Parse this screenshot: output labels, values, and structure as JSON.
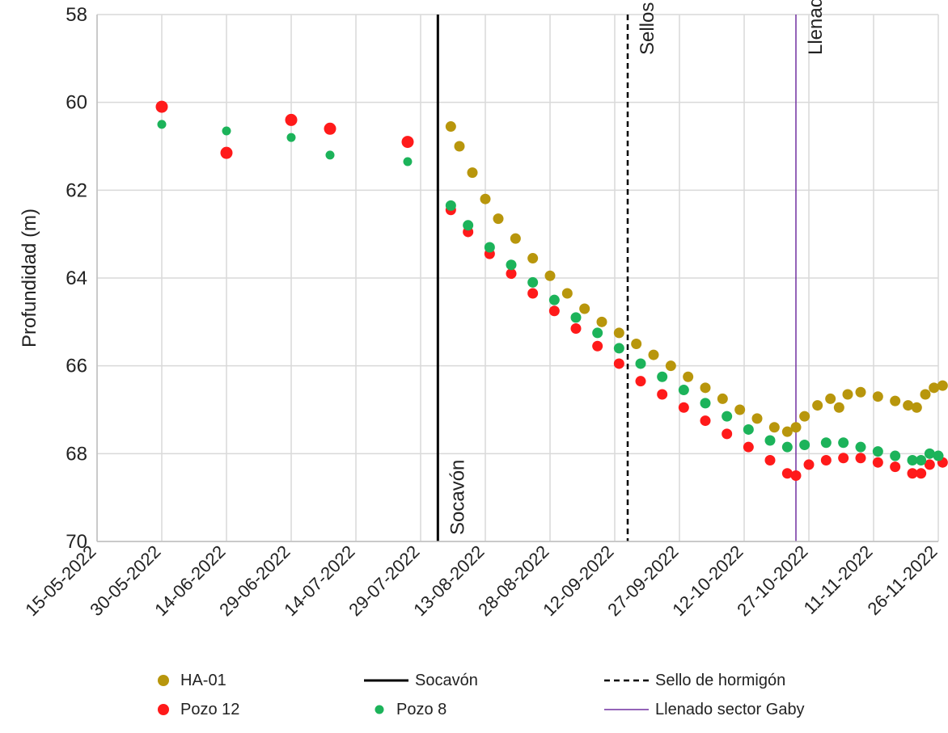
{
  "chart_data": {
    "type": "scatter",
    "ylabel": "Profundidad (m)",
    "xlabel": "",
    "y_reversed": true,
    "ylim": [
      58,
      70
    ],
    "yticks": [
      "58",
      "60",
      "62",
      "64",
      "66",
      "68",
      "70"
    ],
    "xlim": [
      "2022-05-15",
      "2022-11-26"
    ],
    "xticks": [
      "15-05-2022",
      "30-05-2022",
      "14-06-2022",
      "29-06-2022",
      "14-07-2022",
      "29-07-2022",
      "13-08-2022",
      "28-08-2022",
      "12-09-2022",
      "27-09-2022",
      "12-10-2022",
      "27-10-2022",
      "11-11-2022",
      "26-11-2022"
    ],
    "grid": true,
    "legend_position": "bottom",
    "series": [
      {
        "name": "HA-01",
        "color": "#b8960c",
        "marker": "circle",
        "points": [
          [
            "2022-08-05",
            60.55
          ],
          [
            "2022-08-07",
            61.0
          ],
          [
            "2022-08-10",
            61.6
          ],
          [
            "2022-08-13",
            62.2
          ],
          [
            "2022-08-16",
            62.65
          ],
          [
            "2022-08-20",
            63.1
          ],
          [
            "2022-08-24",
            63.55
          ],
          [
            "2022-08-28",
            63.95
          ],
          [
            "2022-09-01",
            64.35
          ],
          [
            "2022-09-05",
            64.7
          ],
          [
            "2022-09-09",
            65.0
          ],
          [
            "2022-09-13",
            65.25
          ],
          [
            "2022-09-17",
            65.5
          ],
          [
            "2022-09-21",
            65.75
          ],
          [
            "2022-09-25",
            66.0
          ],
          [
            "2022-09-29",
            66.25
          ],
          [
            "2022-10-03",
            66.5
          ],
          [
            "2022-10-07",
            66.75
          ],
          [
            "2022-10-11",
            67.0
          ],
          [
            "2022-10-15",
            67.2
          ],
          [
            "2022-10-19",
            67.4
          ],
          [
            "2022-10-22",
            67.5
          ],
          [
            "2022-10-24",
            67.4
          ],
          [
            "2022-10-26",
            67.15
          ],
          [
            "2022-10-29",
            66.9
          ],
          [
            "2022-11-01",
            66.75
          ],
          [
            "2022-11-03",
            66.95
          ],
          [
            "2022-11-05",
            66.65
          ],
          [
            "2022-11-08",
            66.6
          ],
          [
            "2022-11-12",
            66.7
          ],
          [
            "2022-11-16",
            66.8
          ],
          [
            "2022-11-19",
            66.9
          ],
          [
            "2022-11-21",
            66.95
          ],
          [
            "2022-11-23",
            66.65
          ],
          [
            "2022-11-25",
            66.5
          ],
          [
            "2022-11-27",
            66.45
          ]
        ]
      },
      {
        "name": "Pozo 12",
        "color": "#ff1a1a",
        "marker": "circle",
        "points": [
          [
            "2022-05-30",
            60.1
          ],
          [
            "2022-06-14",
            61.15
          ],
          [
            "2022-06-29",
            60.4
          ],
          [
            "2022-07-08",
            60.6
          ],
          [
            "2022-07-26",
            60.9
          ],
          [
            "2022-08-05",
            62.45
          ],
          [
            "2022-08-09",
            62.95
          ],
          [
            "2022-08-14",
            63.45
          ],
          [
            "2022-08-19",
            63.9
          ],
          [
            "2022-08-24",
            64.35
          ],
          [
            "2022-08-29",
            64.75
          ],
          [
            "2022-09-03",
            65.15
          ],
          [
            "2022-09-08",
            65.55
          ],
          [
            "2022-09-13",
            65.95
          ],
          [
            "2022-09-18",
            66.35
          ],
          [
            "2022-09-23",
            66.65
          ],
          [
            "2022-09-28",
            66.95
          ],
          [
            "2022-10-03",
            67.25
          ],
          [
            "2022-10-08",
            67.55
          ],
          [
            "2022-10-13",
            67.85
          ],
          [
            "2022-10-18",
            68.15
          ],
          [
            "2022-10-22",
            68.45
          ],
          [
            "2022-10-24",
            68.5
          ],
          [
            "2022-10-27",
            68.25
          ],
          [
            "2022-10-31",
            68.15
          ],
          [
            "2022-11-04",
            68.1
          ],
          [
            "2022-11-08",
            68.1
          ],
          [
            "2022-11-12",
            68.2
          ],
          [
            "2022-11-16",
            68.3
          ],
          [
            "2022-11-20",
            68.45
          ],
          [
            "2022-11-22",
            68.45
          ],
          [
            "2022-11-24",
            68.25
          ],
          [
            "2022-11-27",
            68.2
          ]
        ]
      },
      {
        "name": "Pozo 8",
        "color": "#1cb35a",
        "marker": "circle",
        "points": [
          [
            "2022-05-30",
            60.5
          ],
          [
            "2022-06-14",
            60.65
          ],
          [
            "2022-06-29",
            60.8
          ],
          [
            "2022-07-08",
            61.2
          ],
          [
            "2022-07-26",
            61.35
          ],
          [
            "2022-08-05",
            62.35
          ],
          [
            "2022-08-09",
            62.8
          ],
          [
            "2022-08-14",
            63.3
          ],
          [
            "2022-08-19",
            63.7
          ],
          [
            "2022-08-24",
            64.1
          ],
          [
            "2022-08-29",
            64.5
          ],
          [
            "2022-09-03",
            64.9
          ],
          [
            "2022-09-08",
            65.25
          ],
          [
            "2022-09-13",
            65.6
          ],
          [
            "2022-09-18",
            65.95
          ],
          [
            "2022-09-23",
            66.25
          ],
          [
            "2022-09-28",
            66.55
          ],
          [
            "2022-10-03",
            66.85
          ],
          [
            "2022-10-08",
            67.15
          ],
          [
            "2022-10-13",
            67.45
          ],
          [
            "2022-10-18",
            67.7
          ],
          [
            "2022-10-22",
            67.85
          ],
          [
            "2022-10-26",
            67.8
          ],
          [
            "2022-10-31",
            67.75
          ],
          [
            "2022-11-04",
            67.75
          ],
          [
            "2022-11-08",
            67.85
          ],
          [
            "2022-11-12",
            67.95
          ],
          [
            "2022-11-16",
            68.05
          ],
          [
            "2022-11-20",
            68.15
          ],
          [
            "2022-11-22",
            68.15
          ],
          [
            "2022-11-24",
            68.0
          ],
          [
            "2022-11-26",
            68.05
          ]
        ]
      }
    ],
    "vertical_lines": [
      {
        "name": "Socavón",
        "date": "2022-08-02",
        "color": "#000000",
        "style": "solid",
        "label": "Socavón"
      },
      {
        "name": "Sello de hormigón",
        "date": "2022-09-15",
        "color": "#000000",
        "style": "dashed",
        "label": "Sellos"
      },
      {
        "name": "Llenado sector Gaby",
        "date": "2022-10-24",
        "color": "#7030a0",
        "style": "solid",
        "label": "Llenado Caserones"
      }
    ],
    "legend": [
      {
        "label": "HA-01",
        "kind": "dot",
        "color": "#b8960c"
      },
      {
        "label": "Socavón",
        "kind": "line",
        "color": "#000000"
      },
      {
        "label": "Sello de hormigón",
        "kind": "dashed",
        "color": "#000000"
      },
      {
        "label": "Pozo 12",
        "kind": "dot",
        "color": "#ff1a1a"
      },
      {
        "label": "Pozo 8",
        "kind": "dot-small",
        "color": "#1cb35a"
      },
      {
        "label": "Llenado sector Gaby",
        "kind": "thin-line",
        "color": "#7030a0"
      }
    ]
  }
}
